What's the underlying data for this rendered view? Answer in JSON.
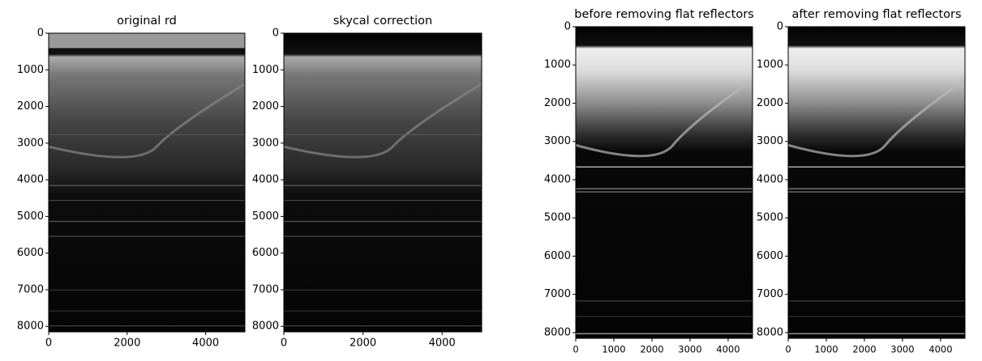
{
  "chart_data": [
    {
      "type": "image",
      "title": "original rd",
      "xlim": [
        0,
        5000
      ],
      "xticks": [
        0,
        2000,
        4000
      ],
      "ylim": [
        8150,
        0
      ],
      "yticks": [
        0,
        1000,
        2000,
        3000,
        4000,
        5000,
        6000,
        7000,
        8000
      ]
    },
    {
      "type": "image",
      "title": "skycal correction",
      "xlim": [
        0,
        5000
      ],
      "xticks": [
        0,
        2000,
        4000
      ],
      "ylim": [
        8150,
        0
      ],
      "yticks": [
        0,
        1000,
        2000,
        3000,
        4000,
        5000,
        6000,
        7000,
        8000
      ]
    },
    {
      "type": "image",
      "title": "before removing flat reflectors",
      "xlim": [
        0,
        4640
      ],
      "xticks": [
        0,
        1000,
        2000,
        3000,
        4000
      ],
      "ylim": [
        8150,
        0
      ],
      "yticks": [
        0,
        1000,
        2000,
        3000,
        4000,
        5000,
        6000,
        7000,
        8000
      ]
    },
    {
      "type": "image",
      "title": "after removing flat reflectors",
      "xlim": [
        0,
        4640
      ],
      "xticks": [
        0,
        1000,
        2000,
        3000,
        4000
      ],
      "ylim": [
        8150,
        0
      ],
      "yticks": [
        0,
        1000,
        2000,
        3000,
        4000,
        5000,
        6000,
        7000,
        8000
      ]
    }
  ]
}
